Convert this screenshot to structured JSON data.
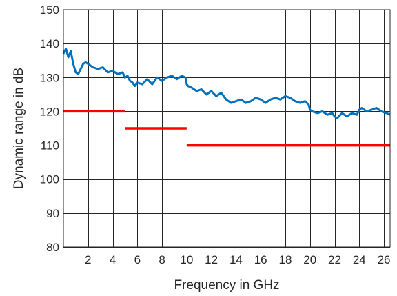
{
  "chart_data": {
    "type": "line",
    "title": "",
    "xlabel": "Frequency in GHz",
    "ylabel": "Dynamic range in dB",
    "xlim": [
      0,
      26.5
    ],
    "ylim": [
      80,
      150
    ],
    "xticks": [
      2,
      4,
      6,
      8,
      10,
      12,
      14,
      16,
      18,
      20,
      22,
      24,
      26
    ],
    "yticks": [
      80,
      90,
      100,
      110,
      120,
      130,
      140,
      150
    ],
    "grid": true,
    "series": [
      {
        "color": "#0072bd",
        "style": "line",
        "x": [
          0.0,
          0.2,
          0.4,
          0.6,
          0.8,
          1.0,
          1.2,
          1.4,
          1.6,
          1.8,
          2.0,
          2.4,
          2.8,
          3.2,
          3.6,
          4.0,
          4.4,
          4.8,
          5.0,
          5.2,
          5.4,
          5.6,
          5.8,
          6.0,
          6.4,
          6.8,
          7.2,
          7.6,
          8.0,
          8.4,
          8.8,
          9.2,
          9.6,
          9.9,
          10.0,
          10.1,
          10.4,
          10.8,
          11.2,
          11.6,
          12.0,
          12.4,
          12.8,
          13.2,
          13.6,
          14.0,
          14.4,
          14.8,
          15.2,
          15.6,
          16.0,
          16.4,
          16.8,
          17.2,
          17.6,
          18.0,
          18.4,
          18.8,
          19.2,
          19.6,
          19.9,
          20.0,
          20.2,
          20.6,
          21.0,
          21.4,
          21.8,
          22.0,
          22.2,
          22.6,
          23.0,
          23.4,
          23.8,
          24.0,
          24.2,
          24.6,
          25.0,
          25.4,
          25.8,
          26.2,
          26.5
        ],
        "y": [
          137.0,
          138.5,
          136.0,
          137.8,
          134.0,
          131.5,
          131.0,
          132.5,
          134.0,
          134.5,
          134.0,
          133.0,
          132.5,
          133.0,
          131.5,
          132.0,
          131.0,
          131.5,
          130.0,
          130.5,
          129.0,
          128.5,
          127.5,
          128.5,
          128.0,
          129.5,
          128.0,
          130.0,
          129.0,
          130.0,
          130.5,
          129.5,
          130.5,
          130.0,
          128.0,
          127.5,
          127.0,
          126.0,
          126.5,
          125.0,
          126.0,
          124.5,
          125.5,
          123.5,
          122.5,
          123.0,
          123.5,
          122.5,
          123.0,
          124.0,
          123.5,
          122.5,
          123.5,
          124.0,
          123.5,
          124.5,
          124.0,
          123.0,
          122.5,
          123.0,
          122.0,
          120.5,
          120.0,
          119.5,
          120.0,
          119.0,
          119.5,
          118.5,
          118.0,
          119.5,
          118.5,
          119.5,
          119.0,
          120.5,
          121.0,
          120.0,
          120.5,
          121.0,
          120.0,
          119.5,
          119.0
        ]
      },
      {
        "color": "#ff0000",
        "style": "step",
        "segments": [
          {
            "x": [
              0,
              5
            ],
            "y": 120
          },
          {
            "x": [
              5,
              10
            ],
            "y": 115
          },
          {
            "x": [
              10,
              26.5
            ],
            "y": 110
          }
        ]
      }
    ]
  }
}
